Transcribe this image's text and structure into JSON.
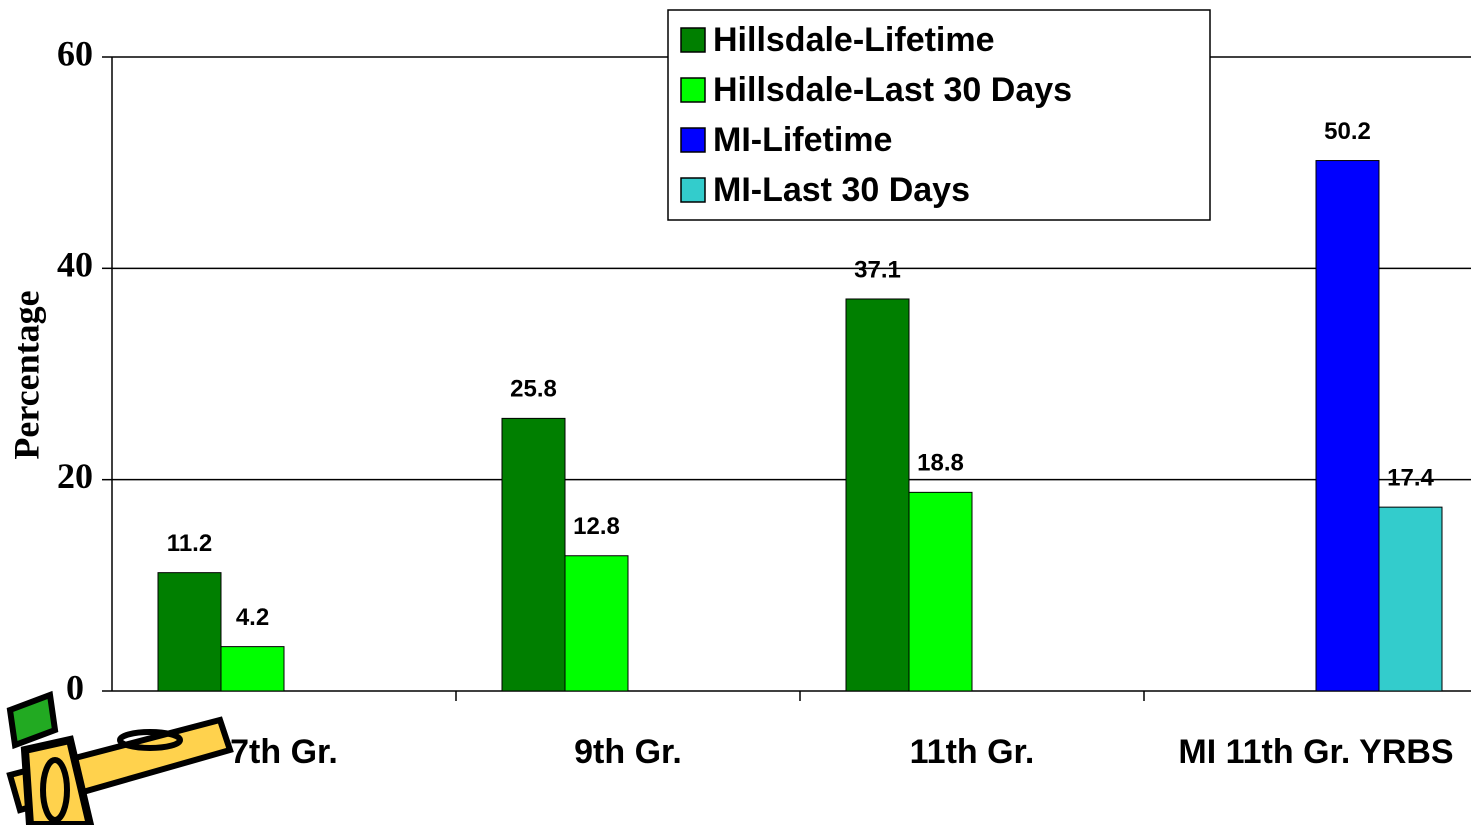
{
  "chart_data": {
    "type": "bar",
    "y_label": "Percentage",
    "categories": [
      "7th Gr.",
      "9th Gr.",
      "11th Gr.",
      "MI 11th Gr. YRBS"
    ],
    "series": [
      {
        "name": "Hillsdale-Lifetime",
        "color": "#007f00",
        "values": [
          11.2,
          25.8,
          37.1,
          null
        ]
      },
      {
        "name": "Hillsdale-Last 30 Days",
        "color": "#00ff00",
        "values": [
          4.2,
          12.8,
          18.8,
          null
        ]
      },
      {
        "name": "MI-Lifetime",
        "color": "#0000ff",
        "values": [
          null,
          null,
          null,
          50.2
        ]
      },
      {
        "name": "MI-Last 30 Days",
        "color": "#33cccc",
        "values": [
          null,
          null,
          null,
          17.4
        ]
      }
    ],
    "ylim": [
      0,
      60
    ],
    "yticks": [
      0,
      20,
      40,
      60
    ],
    "grid": true,
    "legend": "top"
  }
}
